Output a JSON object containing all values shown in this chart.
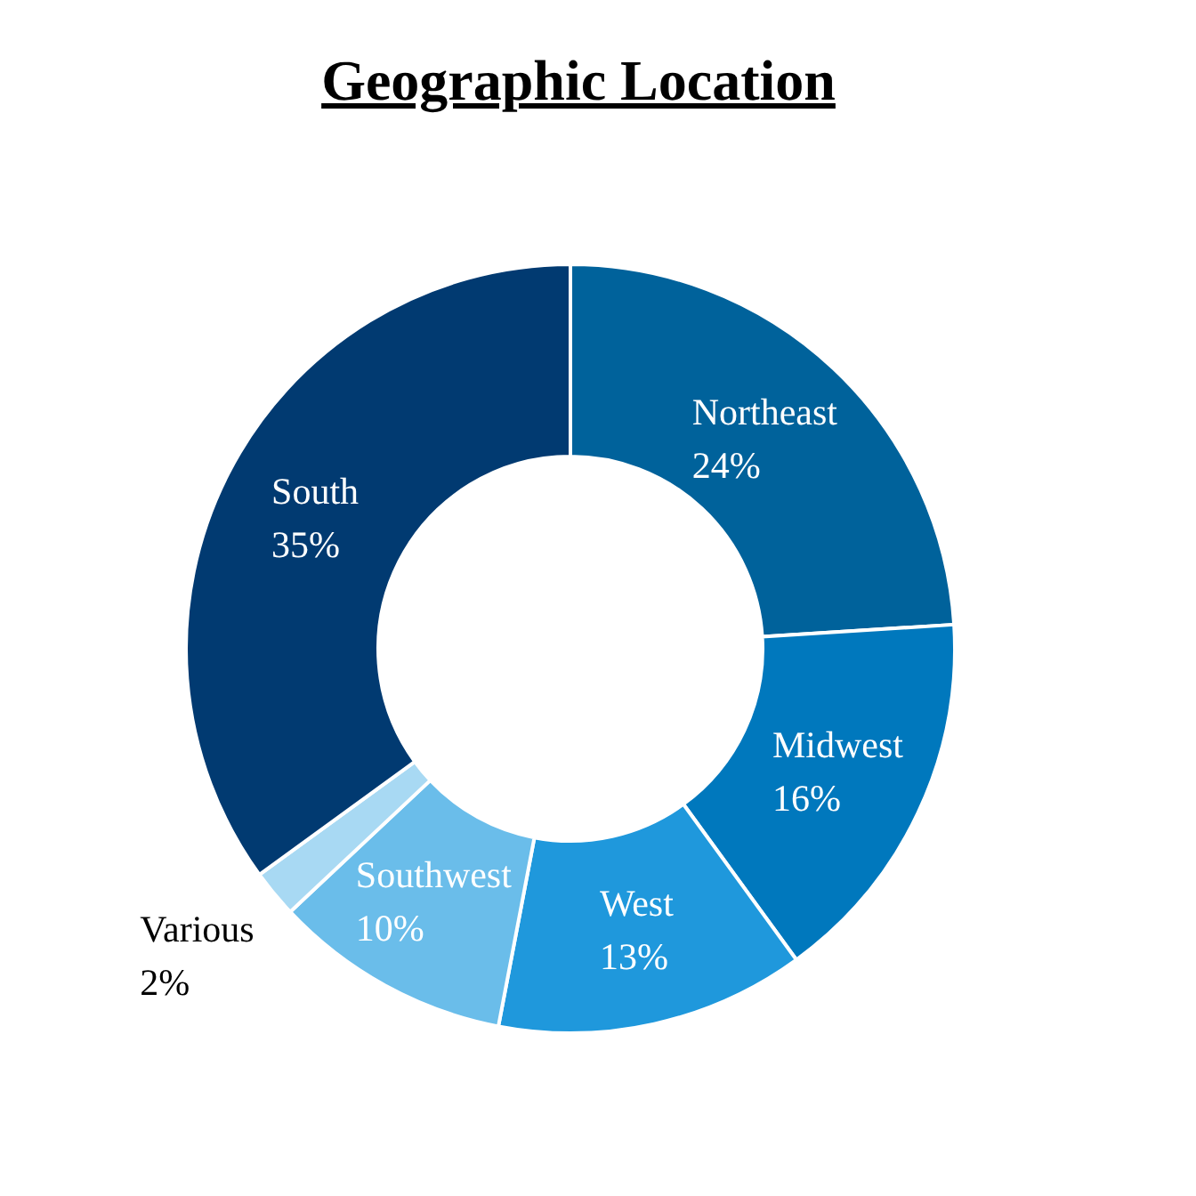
{
  "chart_data": {
    "type": "donut",
    "title": "Geographic Location",
    "categories": [
      "Northeast",
      "Midwest",
      "West",
      "Southwest",
      "Various",
      "South"
    ],
    "values": [
      24,
      16,
      13,
      10,
      2,
      35
    ],
    "colors": [
      "#00629b",
      "#0078bd",
      "#1f98dc",
      "#6abdea",
      "#a8d9f3",
      "#013a71"
    ],
    "value_labels": [
      "24%",
      "16%",
      "13%",
      "10%",
      "2%",
      "35%"
    ]
  }
}
